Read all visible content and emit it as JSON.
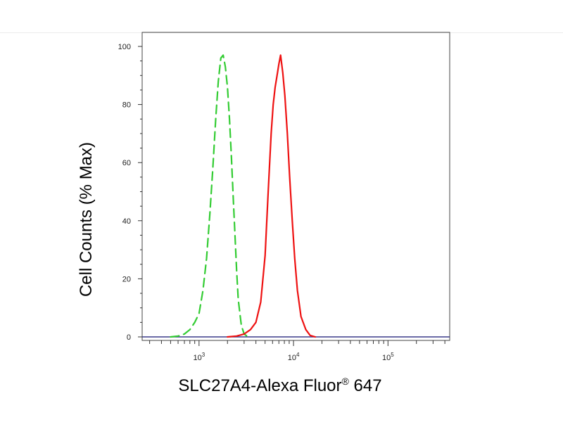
{
  "chart_data": {
    "type": "line",
    "title": "",
    "xlabel": "SLC27A4-Alexa Fluor",
    "xlabel_superscript": "®",
    "xlabel_suffix": " 647",
    "ylabel": "Cell Counts (% Max)",
    "x_scale": "log",
    "xlim": [
      250,
      450000
    ],
    "ylim": [
      0,
      100
    ],
    "yticks": [
      0,
      20,
      40,
      60,
      80,
      100
    ],
    "xticks": [
      {
        "value": 1000,
        "base": "10",
        "exp": "3"
      },
      {
        "value": 10000,
        "base": "10",
        "exp": "4"
      },
      {
        "value": 100000,
        "base": "10",
        "exp": "5"
      }
    ],
    "grid": false,
    "series": [
      {
        "color": "#33cc33",
        "dash": "dashed",
        "x": [
          500,
          600,
          700,
          800,
          900,
          1000,
          1100,
          1200,
          1300,
          1400,
          1500,
          1600,
          1700,
          1800,
          1900,
          2000,
          2100,
          2200,
          2300,
          2400,
          2500,
          2600,
          2800,
          3000,
          3300
        ],
        "y": [
          0,
          0.3,
          1,
          2.5,
          5,
          8,
          16,
          27,
          42,
          58,
          75,
          88,
          96,
          97,
          93,
          86,
          75,
          62,
          48,
          35,
          23,
          13,
          4,
          1,
          0
        ]
      },
      {
        "color": "#ee1111",
        "dash": "solid",
        "x": [
          2000,
          2500,
          3000,
          3500,
          4000,
          4500,
          5000,
          5400,
          5800,
          6100,
          6400,
          6700,
          7000,
          7300,
          7700,
          8100,
          8600,
          9100,
          9700,
          10300,
          11000,
          12000,
          13500,
          15000,
          17000
        ],
        "y": [
          0,
          0.3,
          1,
          2.5,
          5,
          12,
          28,
          50,
          70,
          80,
          86,
          90,
          94,
          97,
          91,
          83,
          70,
          55,
          40,
          27,
          16,
          7,
          2.5,
          0.5,
          0
        ]
      }
    ]
  }
}
